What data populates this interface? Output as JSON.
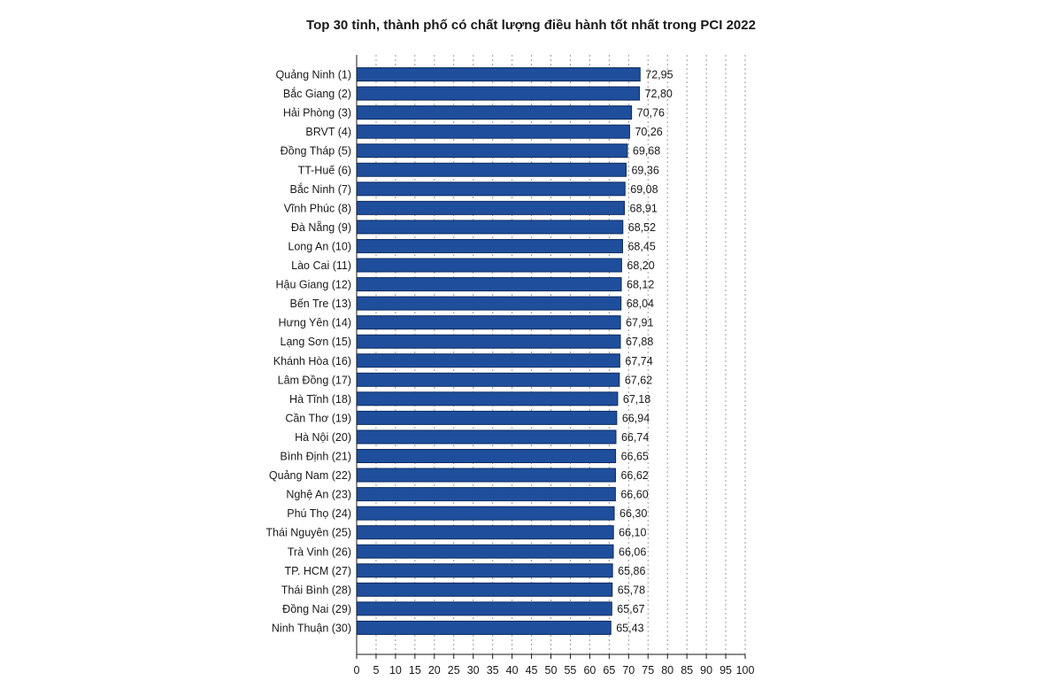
{
  "chart_data": {
    "type": "bar",
    "orientation": "horizontal",
    "title": "Top 30 tỉnh, thành phố có chất lượng điều hành tốt nhất trong PCI 2022",
    "xlabel": "",
    "ylabel": "",
    "xlim": [
      0,
      100
    ],
    "xticks": [
      0,
      5,
      10,
      15,
      20,
      25,
      30,
      35,
      40,
      45,
      50,
      55,
      60,
      65,
      70,
      75,
      80,
      85,
      90,
      95,
      100
    ],
    "grid": true,
    "bar_color": "#1f4e9c",
    "categories": [
      "Quảng Ninh (1)",
      "Bắc Giang (2)",
      "Hải Phòng (3)",
      "BRVT (4)",
      "Đồng Tháp (5)",
      "TT-Huế (6)",
      "Bắc Ninh (7)",
      "Vĩnh Phúc (8)",
      "Đà Nẵng (9)",
      "Long An (10)",
      "Lào Cai (11)",
      "Hậu Giang (12)",
      "Bến Tre (13)",
      "Hưng Yên (14)",
      "Lạng Sơn (15)",
      "Khánh Hòa (16)",
      "Lâm Đồng (17)",
      "Hà Tĩnh (18)",
      "Cần Thơ (19)",
      "Hà Nội (20)",
      "Bình Định (21)",
      "Quảng Nam (22)",
      "Nghệ An (23)",
      "Phú Thọ (24)",
      "Thái Nguyên (25)",
      "Trà Vinh (26)",
      "TP. HCM (27)",
      "Thái Bình (28)",
      "Đồng Nai (29)",
      "Ninh Thuận (30)"
    ],
    "values": [
      72.95,
      72.8,
      70.76,
      70.26,
      69.68,
      69.36,
      69.08,
      68.91,
      68.52,
      68.45,
      68.2,
      68.12,
      68.04,
      67.91,
      67.88,
      67.74,
      67.62,
      67.18,
      66.94,
      66.74,
      66.65,
      66.62,
      66.6,
      66.3,
      66.1,
      66.06,
      65.86,
      65.78,
      65.67,
      65.43
    ],
    "value_labels": [
      "72,95",
      "72,80",
      "70,76",
      "70,26",
      "69,68",
      "69,36",
      "69,08",
      "68,91",
      "68,52",
      "68,45",
      "68,20",
      "68,12",
      "68,04",
      "67,91",
      "67,88",
      "67,74",
      "67,62",
      "67,18",
      "66,94",
      "66,74",
      "66,65",
      "66,62",
      "66,60",
      "66,30",
      "66,10",
      "66,06",
      "65,86",
      "65,78",
      "65,67",
      "65,43"
    ]
  }
}
